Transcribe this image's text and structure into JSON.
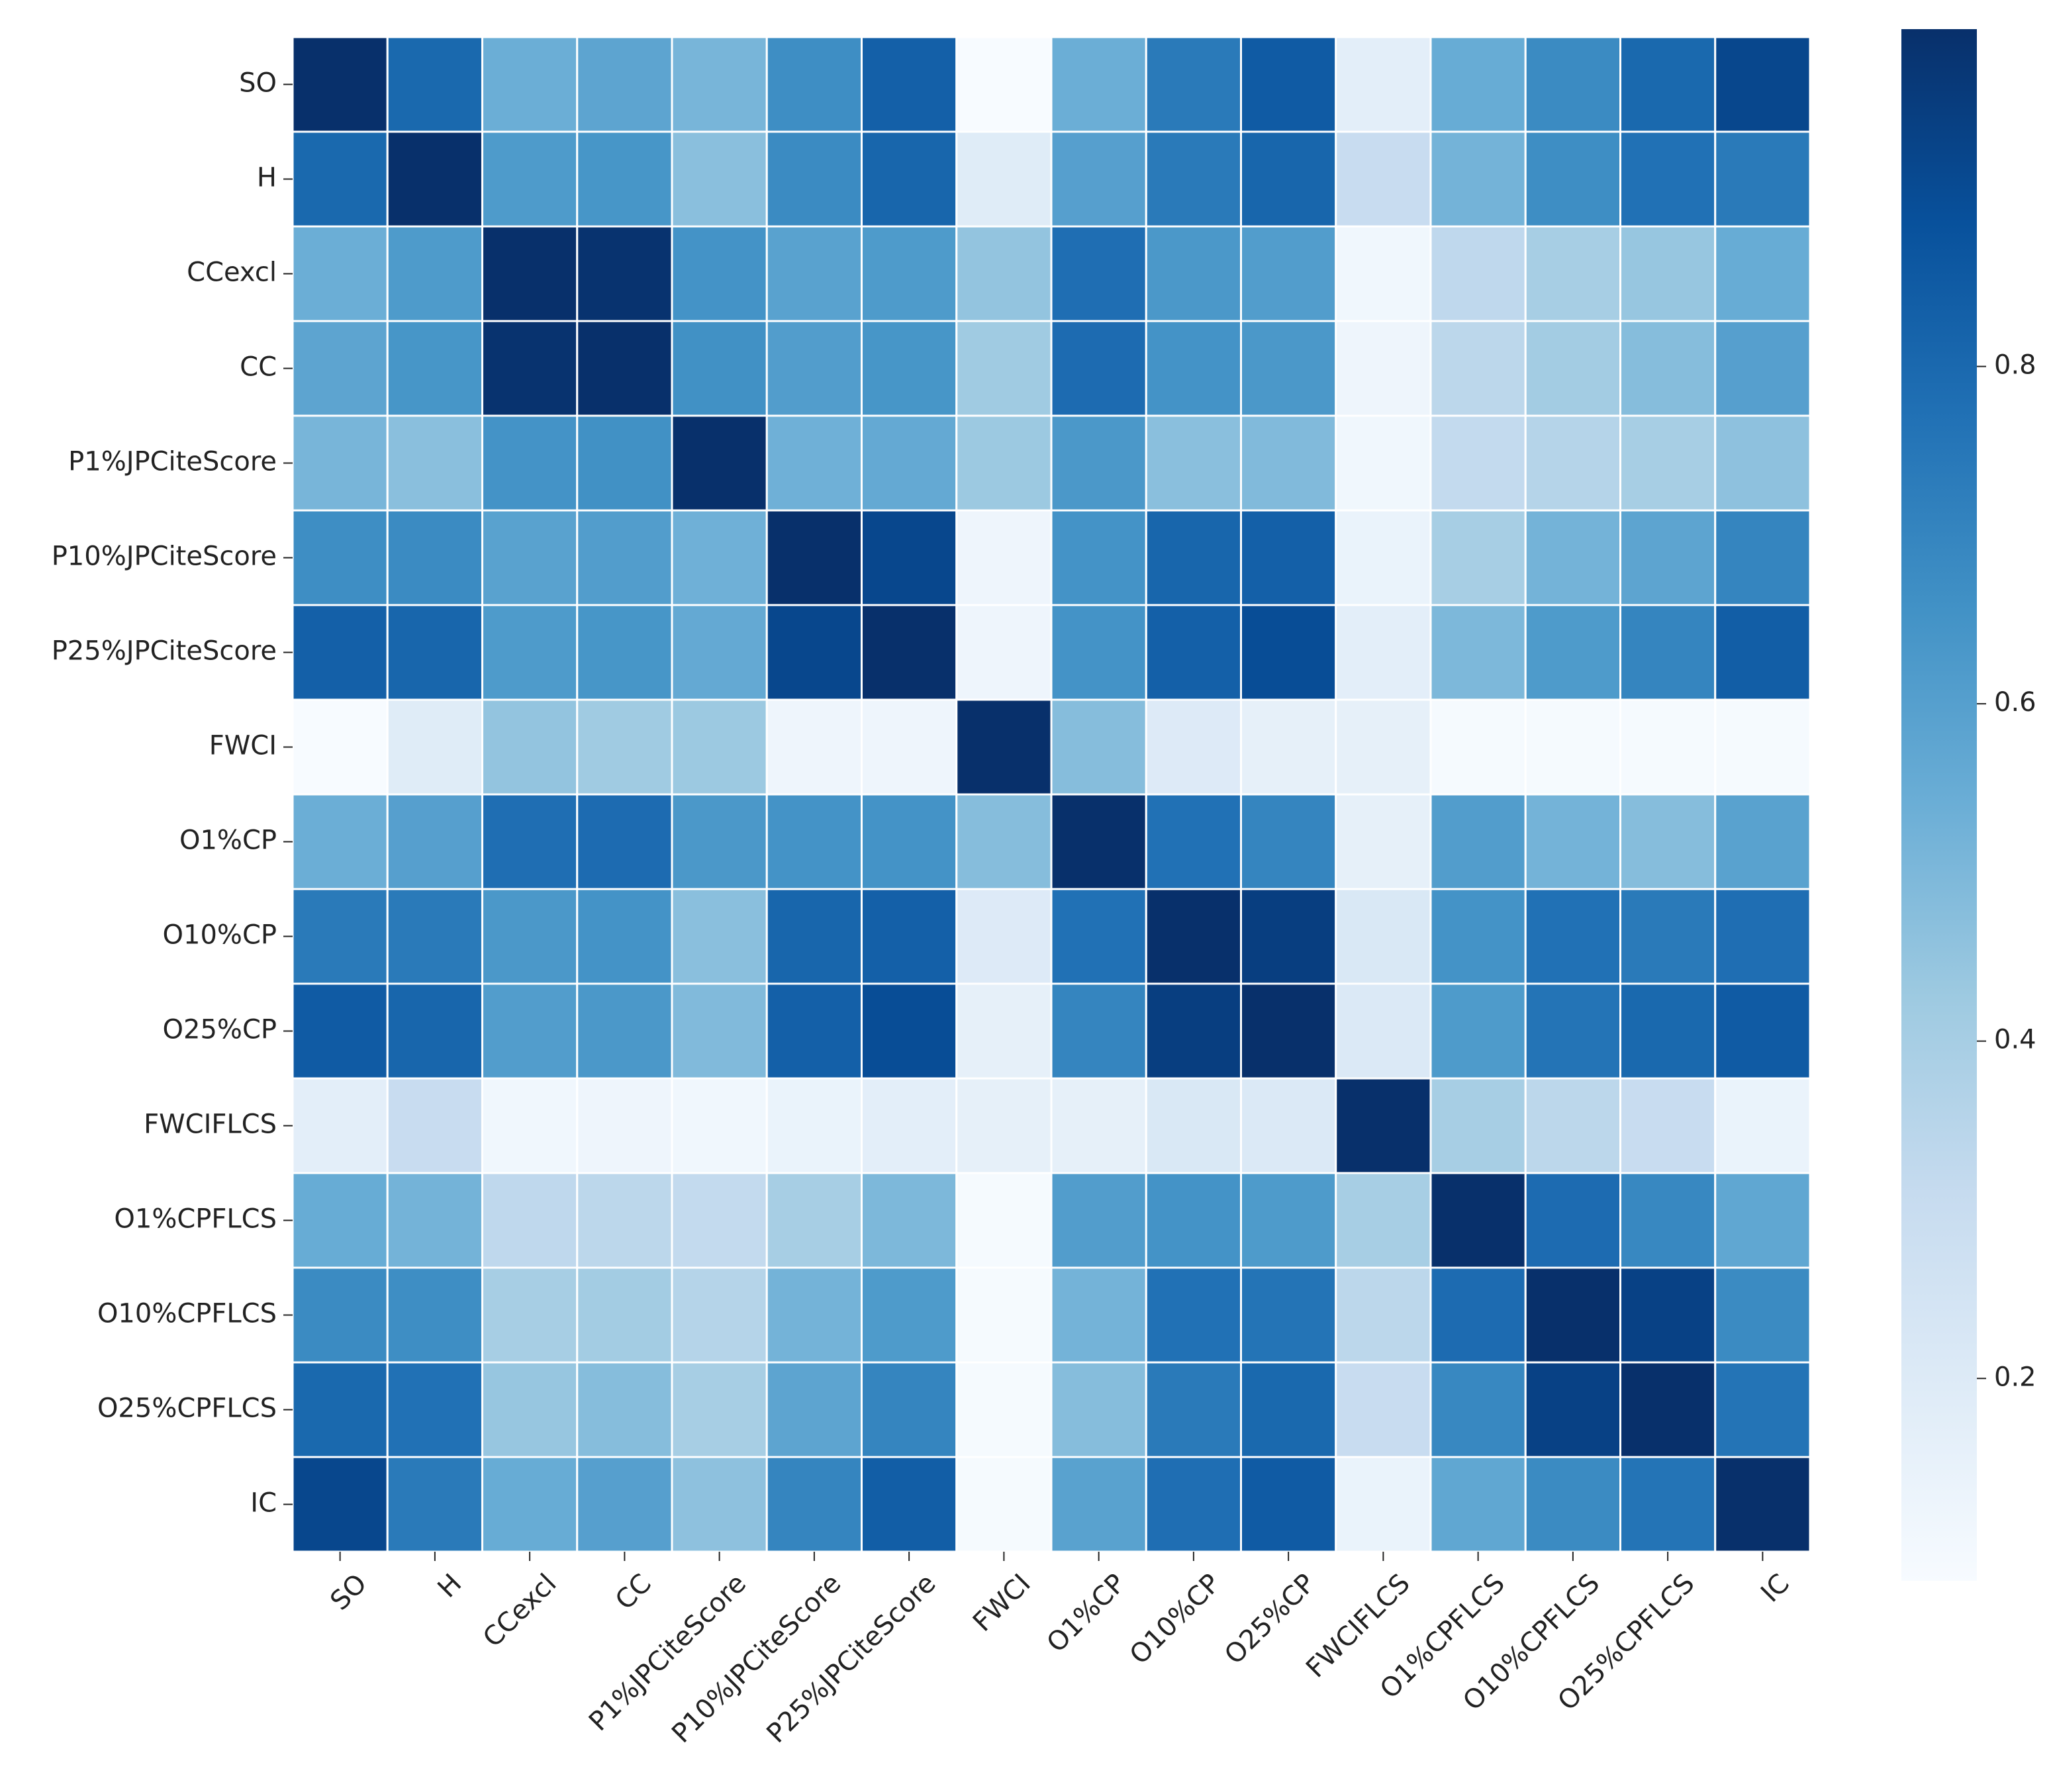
{
  "chart_data": {
    "type": "heatmap",
    "title": "",
    "xlabel": "",
    "ylabel": "",
    "labels": [
      "SO",
      "H",
      "CCexcl",
      "CC",
      "P1%JPCiteScore",
      "P10%JPCiteScore",
      "P25%JPCiteScore",
      "FWCI",
      "O1%CP",
      "O10%CP",
      "O25%CP",
      "FWCIFLCS",
      "O1%CPFLCS",
      "O10%CPFLCS",
      "O25%CPFLCS",
      "IC"
    ],
    "values": [
      [
        1.0,
        0.8,
        0.54,
        0.58,
        0.51,
        0.67,
        0.83,
        0.08,
        0.54,
        0.74,
        0.85,
        0.17,
        0.55,
        0.68,
        0.8,
        0.92
      ],
      [
        0.8,
        1.0,
        0.62,
        0.64,
        0.47,
        0.68,
        0.81,
        0.19,
        0.6,
        0.74,
        0.81,
        0.3,
        0.52,
        0.67,
        0.77,
        0.74
      ],
      [
        0.54,
        0.62,
        1.0,
        0.99,
        0.65,
        0.59,
        0.62,
        0.45,
        0.78,
        0.63,
        0.61,
        0.11,
        0.33,
        0.4,
        0.44,
        0.55
      ],
      [
        0.58,
        0.64,
        0.99,
        1.0,
        0.66,
        0.61,
        0.64,
        0.42,
        0.79,
        0.65,
        0.63,
        0.12,
        0.34,
        0.41,
        0.48,
        0.6
      ],
      [
        0.51,
        0.47,
        0.65,
        0.66,
        1.0,
        0.53,
        0.56,
        0.43,
        0.63,
        0.47,
        0.49,
        0.11,
        0.32,
        0.36,
        0.4,
        0.46
      ],
      [
        0.67,
        0.68,
        0.59,
        0.61,
        0.53,
        1.0,
        0.92,
        0.12,
        0.65,
        0.81,
        0.83,
        0.14,
        0.4,
        0.52,
        0.58,
        0.7
      ],
      [
        0.83,
        0.81,
        0.62,
        0.64,
        0.56,
        0.92,
        1.0,
        0.12,
        0.65,
        0.83,
        0.9,
        0.17,
        0.5,
        0.62,
        0.7,
        0.84
      ],
      [
        0.08,
        0.19,
        0.45,
        0.42,
        0.43,
        0.12,
        0.12,
        1.0,
        0.48,
        0.2,
        0.16,
        0.16,
        0.09,
        0.09,
        0.09,
        0.09
      ],
      [
        0.54,
        0.6,
        0.78,
        0.79,
        0.63,
        0.65,
        0.65,
        0.48,
        1.0,
        0.77,
        0.7,
        0.16,
        0.61,
        0.52,
        0.48,
        0.59
      ],
      [
        0.74,
        0.74,
        0.63,
        0.65,
        0.47,
        0.81,
        0.83,
        0.2,
        0.77,
        1.0,
        0.95,
        0.22,
        0.65,
        0.77,
        0.74,
        0.78
      ],
      [
        0.85,
        0.81,
        0.61,
        0.63,
        0.49,
        0.83,
        0.9,
        0.16,
        0.7,
        0.95,
        1.0,
        0.21,
        0.62,
        0.76,
        0.8,
        0.85
      ],
      [
        0.17,
        0.3,
        0.11,
        0.12,
        0.11,
        0.14,
        0.17,
        0.16,
        0.16,
        0.22,
        0.21,
        1.0,
        0.4,
        0.34,
        0.3,
        0.14
      ],
      [
        0.55,
        0.52,
        0.33,
        0.34,
        0.32,
        0.4,
        0.5,
        0.09,
        0.61,
        0.65,
        0.62,
        0.4,
        1.0,
        0.79,
        0.69,
        0.57
      ],
      [
        0.68,
        0.67,
        0.4,
        0.41,
        0.36,
        0.52,
        0.62,
        0.09,
        0.52,
        0.77,
        0.76,
        0.34,
        0.79,
        1.0,
        0.94,
        0.68
      ],
      [
        0.8,
        0.77,
        0.44,
        0.48,
        0.4,
        0.58,
        0.7,
        0.09,
        0.48,
        0.74,
        0.8,
        0.3,
        0.69,
        0.94,
        1.0,
        0.76
      ],
      [
        0.92,
        0.74,
        0.55,
        0.6,
        0.46,
        0.7,
        0.84,
        0.09,
        0.59,
        0.78,
        0.85,
        0.14,
        0.57,
        0.68,
        0.76,
        1.0
      ]
    ],
    "colorbar": {
      "min": 0.08,
      "max": 1.0,
      "ticks": [
        0.2,
        0.4,
        0.6,
        0.8
      ],
      "tick_labels": [
        "0.2",
        "0.4",
        "0.6",
        "0.8"
      ],
      "colormap": "Blues",
      "stops": [
        "#f7fbff",
        "#deebf7",
        "#c6dbef",
        "#9ecae1",
        "#6baed6",
        "#4292c6",
        "#2171b5",
        "#08519c",
        "#08306b"
      ]
    }
  }
}
